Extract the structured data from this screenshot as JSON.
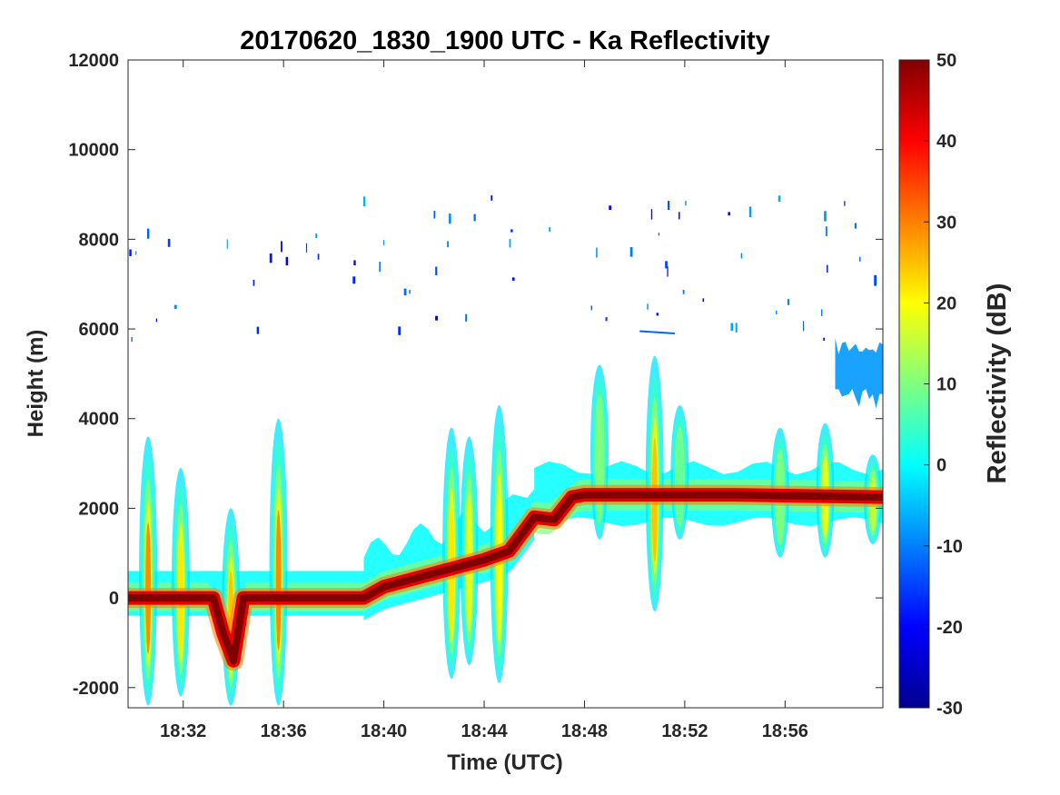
{
  "chart_data": {
    "type": "heatmap",
    "title": "20170620_1830_1900 UTC - Ka Reflectivity",
    "xlabel": "Time (UTC)",
    "ylabel": "Height (m)",
    "x_range_minutes": [
      29.8,
      59.9
    ],
    "xlim": [
      "18:29:48",
      "18:59:54"
    ],
    "ylim": [
      -2450,
      12000
    ],
    "x_ticks": [
      {
        "minute": 32,
        "label": "18:32"
      },
      {
        "minute": 36,
        "label": "18:36"
      },
      {
        "minute": 40,
        "label": "18:40"
      },
      {
        "minute": 44,
        "label": "18:44"
      },
      {
        "minute": 48,
        "label": "18:48"
      },
      {
        "minute": 52,
        "label": "18:52"
      },
      {
        "minute": 56,
        "label": "18:56"
      }
    ],
    "y_ticks": [
      {
        "value": 12000,
        "label": "12000"
      },
      {
        "value": 10000,
        "label": "10000"
      },
      {
        "value": 8000,
        "label": "8000"
      },
      {
        "value": 6000,
        "label": "6000"
      },
      {
        "value": 4000,
        "label": "4000"
      },
      {
        "value": 2000,
        "label": "2000"
      },
      {
        "value": 0,
        "label": "0"
      },
      {
        "value": -2000,
        "label": "-2000"
      }
    ],
    "colorbar": {
      "label": "Reflectivity (dB)",
      "range": [
        -30,
        50
      ],
      "colormap": "jet",
      "ticks": [
        {
          "value": 50,
          "label": "50"
        },
        {
          "value": 40,
          "label": "40"
        },
        {
          "value": 30,
          "label": "30"
        },
        {
          "value": 20,
          "label": "20"
        },
        {
          "value": 10,
          "label": "10"
        },
        {
          "value": 0,
          "label": "0"
        },
        {
          "value": -10,
          "label": "-10"
        },
        {
          "value": -20,
          "label": "-20"
        },
        {
          "value": -30,
          "label": "-30"
        }
      ]
    },
    "surface_echo": [
      {
        "minute": 29.8,
        "height": 0
      },
      {
        "minute": 33.2,
        "height": 0
      },
      {
        "minute": 33.6,
        "height": -800
      },
      {
        "minute": 34.0,
        "height": -1400
      },
      {
        "minute": 34.4,
        "height": 0
      },
      {
        "minute": 39.2,
        "height": 0
      },
      {
        "minute": 40.0,
        "height": 250
      },
      {
        "minute": 42.0,
        "height": 550
      },
      {
        "minute": 44.0,
        "height": 850
      },
      {
        "minute": 45.0,
        "height": 1050
      },
      {
        "minute": 46.0,
        "height": 1800
      },
      {
        "minute": 46.8,
        "height": 1750
      },
      {
        "minute": 47.5,
        "height": 2250
      },
      {
        "minute": 48.0,
        "height": 2300
      },
      {
        "minute": 54.0,
        "height": 2300
      },
      {
        "minute": 59.9,
        "height": 2250
      }
    ],
    "echo_columns": [
      {
        "minute": 30.6,
        "bottom": -2400,
        "top": 3600,
        "peak_dbz": 30
      },
      {
        "minute": 31.9,
        "bottom": -2200,
        "top": 2900,
        "peak_dbz": 22
      },
      {
        "minute": 33.9,
        "bottom": -2400,
        "top": 2000,
        "peak_dbz": 25
      },
      {
        "minute": 35.8,
        "bottom": -2400,
        "top": 4000,
        "peak_dbz": 30
      },
      {
        "minute": 42.7,
        "bottom": -1800,
        "top": 3800,
        "peak_dbz": 22
      },
      {
        "minute": 43.4,
        "bottom": -1500,
        "top": 3600,
        "peak_dbz": 18
      },
      {
        "minute": 44.6,
        "bottom": -1900,
        "top": 4300,
        "peak_dbz": 20
      },
      {
        "minute": 48.6,
        "bottom": 1300,
        "top": 5200,
        "peak_dbz": 10
      },
      {
        "minute": 50.8,
        "bottom": -300,
        "top": 5400,
        "peak_dbz": 25
      },
      {
        "minute": 51.8,
        "bottom": 1300,
        "top": 4300,
        "peak_dbz": 8
      },
      {
        "minute": 55.8,
        "bottom": 900,
        "top": 3800,
        "peak_dbz": 10
      },
      {
        "minute": 57.6,
        "bottom": 900,
        "top": 3900,
        "peak_dbz": 18
      },
      {
        "minute": 59.5,
        "bottom": 1200,
        "top": 3200,
        "peak_dbz": 15
      }
    ],
    "cloud_layers": [
      {
        "start": 29.8,
        "end": 39.2,
        "base": -400,
        "top": 600,
        "dbz": 0
      },
      {
        "start": 39.2,
        "end": 46.0,
        "base": -300,
        "top": 2000,
        "dbz": 0
      },
      {
        "start": 46.0,
        "end": 59.9,
        "base": 1700,
        "top": 2900,
        "dbz": 0
      }
    ],
    "upper_cells": [
      {
        "start": 58.0,
        "end": 59.9,
        "base": 4200,
        "top": 5800,
        "dbz": -8
      }
    ]
  }
}
